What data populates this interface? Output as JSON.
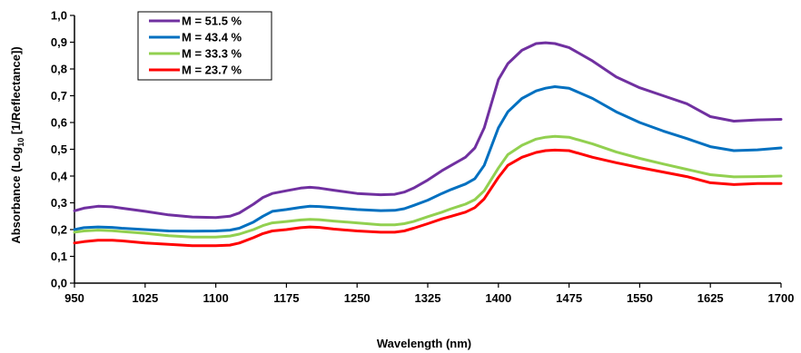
{
  "chart_data": {
    "type": "line",
    "xlabel": "Wavelength (nm)",
    "ylabel_prefix": "Absorbance (Log",
    "ylabel_sub": "10",
    "ylabel_suffix": " [1/Reflectance])",
    "xlim": [
      950,
      1700
    ],
    "ylim": [
      0,
      1.0
    ],
    "x_ticks": [
      950,
      1025,
      1100,
      1175,
      1250,
      1325,
      1400,
      1475,
      1550,
      1625,
      1700
    ],
    "x_tick_labels": [
      "950",
      "1025",
      "1100",
      "1175",
      "1250",
      "1325",
      "1400",
      "1475",
      "1550",
      "1625",
      "1700"
    ],
    "y_ticks": [
      0,
      0.1,
      0.2,
      0.3,
      0.4,
      0.5,
      0.6,
      0.7,
      0.8,
      0.9,
      1.0
    ],
    "y_tick_labels": [
      "0,0",
      "0,1",
      "0,2",
      "0,3",
      "0,4",
      "0,5",
      "0,6",
      "0,7",
      "0,8",
      "0,9",
      "1,0"
    ],
    "grid": false,
    "legend_position": "top-left",
    "x": [
      950,
      960,
      975,
      990,
      1000,
      1025,
      1050,
      1075,
      1100,
      1115,
      1125,
      1140,
      1150,
      1160,
      1175,
      1190,
      1200,
      1210,
      1225,
      1250,
      1275,
      1290,
      1300,
      1310,
      1325,
      1340,
      1350,
      1365,
      1375,
      1385,
      1400,
      1410,
      1425,
      1440,
      1450,
      1460,
      1475,
      1500,
      1525,
      1550,
      1575,
      1600,
      1625,
      1650,
      1675,
      1700
    ],
    "series": [
      {
        "name": "M = 51.5 %",
        "color": "#7030a0",
        "values": [
          0.27,
          0.28,
          0.287,
          0.285,
          0.28,
          0.268,
          0.255,
          0.247,
          0.245,
          0.25,
          0.262,
          0.295,
          0.32,
          0.335,
          0.345,
          0.355,
          0.358,
          0.355,
          0.347,
          0.335,
          0.33,
          0.332,
          0.34,
          0.355,
          0.385,
          0.42,
          0.44,
          0.47,
          0.505,
          0.58,
          0.76,
          0.82,
          0.87,
          0.895,
          0.898,
          0.895,
          0.88,
          0.83,
          0.77,
          0.73,
          0.7,
          0.67,
          0.622,
          0.605,
          0.61,
          0.612
        ]
      },
      {
        "name": "M = 43.4 %",
        "color": "#0070c0",
        "values": [
          0.2,
          0.207,
          0.21,
          0.208,
          0.205,
          0.2,
          0.195,
          0.194,
          0.195,
          0.198,
          0.205,
          0.228,
          0.25,
          0.268,
          0.275,
          0.283,
          0.287,
          0.286,
          0.282,
          0.275,
          0.271,
          0.272,
          0.278,
          0.29,
          0.31,
          0.335,
          0.35,
          0.37,
          0.39,
          0.44,
          0.58,
          0.64,
          0.69,
          0.718,
          0.728,
          0.734,
          0.728,
          0.69,
          0.64,
          0.6,
          0.568,
          0.54,
          0.51,
          0.495,
          0.498,
          0.505
        ]
      },
      {
        "name": "M = 33.3 %",
        "color": "#92d050",
        "values": [
          0.19,
          0.195,
          0.198,
          0.196,
          0.193,
          0.186,
          0.177,
          0.172,
          0.172,
          0.176,
          0.183,
          0.2,
          0.215,
          0.225,
          0.23,
          0.236,
          0.238,
          0.237,
          0.232,
          0.225,
          0.218,
          0.218,
          0.222,
          0.23,
          0.248,
          0.265,
          0.278,
          0.295,
          0.312,
          0.345,
          0.43,
          0.48,
          0.515,
          0.538,
          0.545,
          0.548,
          0.545,
          0.52,
          0.49,
          0.466,
          0.445,
          0.425,
          0.405,
          0.397,
          0.398,
          0.4
        ]
      },
      {
        "name": "M = 23.7 %",
        "color": "#ff0000",
        "values": [
          0.15,
          0.155,
          0.16,
          0.16,
          0.158,
          0.15,
          0.145,
          0.14,
          0.14,
          0.142,
          0.15,
          0.17,
          0.185,
          0.195,
          0.2,
          0.207,
          0.21,
          0.208,
          0.202,
          0.195,
          0.19,
          0.19,
          0.195,
          0.205,
          0.222,
          0.24,
          0.25,
          0.265,
          0.282,
          0.315,
          0.395,
          0.44,
          0.47,
          0.488,
          0.495,
          0.497,
          0.495,
          0.47,
          0.45,
          0.432,
          0.415,
          0.398,
          0.375,
          0.368,
          0.372,
          0.372
        ]
      }
    ]
  }
}
